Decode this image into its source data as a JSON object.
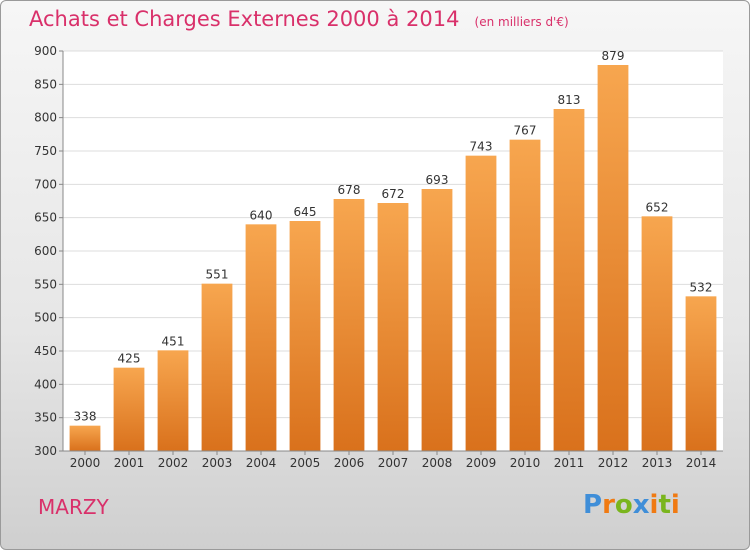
{
  "chart_data": {
    "type": "bar",
    "title": "Achats et Charges Externes 2000 à 2014",
    "unit": "(en milliers d'€)",
    "categories": [
      "2000",
      "2001",
      "2002",
      "2003",
      "2004",
      "2005",
      "2006",
      "2007",
      "2008",
      "2009",
      "2010",
      "2011",
      "2012",
      "2013",
      "2014"
    ],
    "values": [
      338,
      425,
      451,
      551,
      640,
      645,
      678,
      672,
      693,
      743,
      767,
      813,
      879,
      652,
      532
    ],
    "ylim": [
      300,
      900
    ],
    "yticks": [
      300,
      350,
      400,
      450,
      500,
      550,
      600,
      650,
      700,
      750,
      800,
      850,
      900
    ],
    "grid": true,
    "bar_color_top": "#f7a64f",
    "bar_color_bottom": "#d9711c",
    "grid_color": "#dddddd"
  },
  "footer": {
    "commune": "MARZY",
    "logo_text": "Proxiti",
    "logo_colors": [
      "#3f8ed8",
      "#f07a12",
      "#7ab51d",
      "#3f8ed8",
      "#f07a12",
      "#7ab51d",
      "#f07a12"
    ]
  },
  "accent_color": "#d9306a"
}
